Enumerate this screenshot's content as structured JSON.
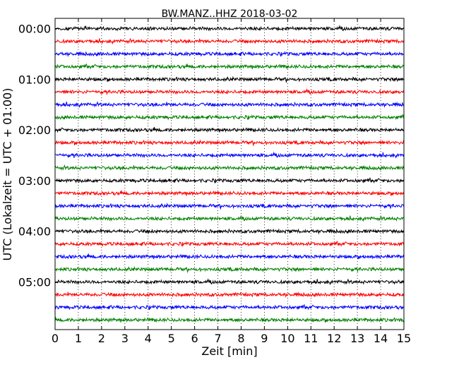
{
  "chart_data": {
    "type": "line",
    "title": "BW.MANZ..HHZ 2018-03-02",
    "xlabel": "Zeit  [min]",
    "ylabel": "UTC (Lokalzeit = UTC + 01:00)",
    "xlim": [
      0,
      15
    ],
    "x_ticks": [
      "0",
      "1",
      "2",
      "3",
      "4",
      "5",
      "6",
      "7",
      "8",
      "9",
      "10",
      "11",
      "12",
      "13",
      "14",
      "15"
    ],
    "grid": "vertical dotted",
    "trace_interval_min": 15,
    "trace_colors": [
      "#000000",
      "#ff0000",
      "#0000ff",
      "#008000"
    ],
    "y_ticks": [
      "00:00",
      "01:00",
      "02:00",
      "03:00",
      "04:00",
      "05:00"
    ],
    "traces": [
      "00:00",
      "00:15",
      "00:30",
      "00:45",
      "01:00",
      "01:15",
      "01:30",
      "01:45",
      "02:00",
      "02:15",
      "02:30",
      "02:45",
      "03:00",
      "03:15",
      "03:30",
      "03:45",
      "04:00",
      "04:15",
      "04:30",
      "04:45",
      "05:00",
      "05:15",
      "05:30",
      "05:45"
    ]
  }
}
